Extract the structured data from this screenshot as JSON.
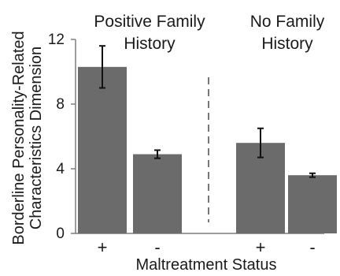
{
  "chart_data": {
    "type": "bar",
    "title": "",
    "xlabel": "Maltreatment Status",
    "ylabel_lines": [
      "Borderline Personality-Related",
      "Characteristics Dimension"
    ],
    "ylim": [
      0,
      12
    ],
    "yticks": [
      "0",
      "4",
      "8",
      "12"
    ],
    "grid": false,
    "groups": [
      {
        "label_lines": [
          "Positive Family",
          "History"
        ]
      },
      {
        "label_lines": [
          "No Family",
          "History"
        ]
      }
    ],
    "categories": [
      "+",
      "-",
      "+",
      "-"
    ],
    "values": [
      10.3,
      4.9,
      5.6,
      3.6
    ],
    "error": [
      1.3,
      0.25,
      0.9,
      0.12
    ],
    "bar_color": "#6b6b6b",
    "axis_color": "#7f7f7f",
    "separator": "dashed"
  }
}
